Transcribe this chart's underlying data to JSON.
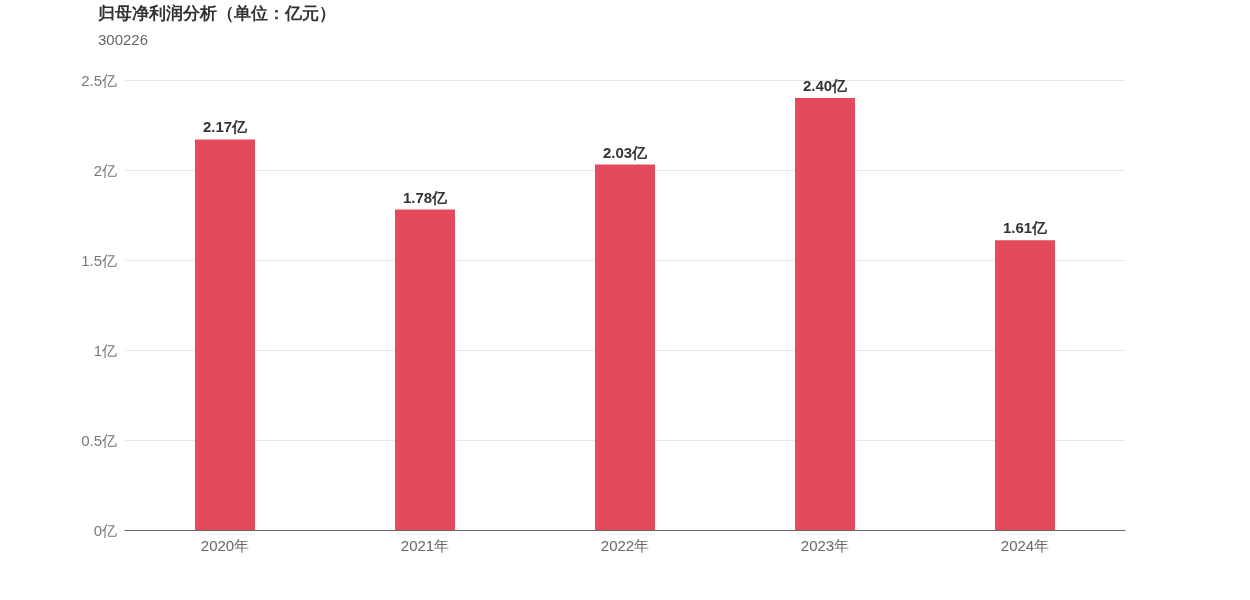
{
  "chart_data": {
    "type": "bar",
    "title": "归母净利润分析（单位：亿元）",
    "subtitle": "300226",
    "categories": [
      "2020年",
      "2021年",
      "2022年",
      "2023年",
      "2024年"
    ],
    "values": [
      2.17,
      1.78,
      2.03,
      2.4,
      1.61
    ],
    "value_labels": [
      "2.17亿",
      "1.78亿",
      "2.03亿",
      "2.40亿",
      "1.61亿"
    ],
    "color": "#e44a5c",
    "ylim": [
      0,
      2.5
    ],
    "yticks": [
      {
        "value": 0,
        "label": "0亿"
      },
      {
        "value": 0.5,
        "label": "0.5亿"
      },
      {
        "value": 1,
        "label": "1亿"
      },
      {
        "value": 1.5,
        "label": "1.5亿"
      },
      {
        "value": 2,
        "label": "2亿"
      },
      {
        "value": 2.5,
        "label": "2.5亿"
      }
    ],
    "grid": "y"
  }
}
